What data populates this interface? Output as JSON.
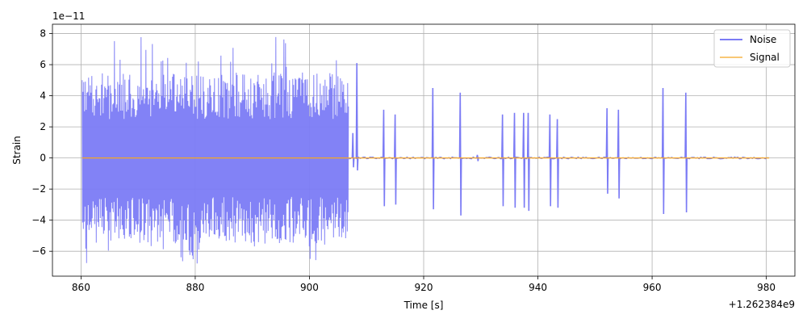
{
  "chart_data": {
    "type": "line",
    "title": "",
    "xlabel": "Time [s]",
    "ylabel": "Strain",
    "x_offset_label": "+1.262384e9",
    "y_scale_label": "1e−11",
    "xlim": [
      855,
      985
    ],
    "ylim": [
      -7.6,
      8.6
    ],
    "x_ticks": [
      860,
      880,
      900,
      920,
      940,
      960,
      980
    ],
    "x_tick_labels": [
      "860",
      "880",
      "900",
      "920",
      "940",
      "960",
      "980"
    ],
    "y_ticks": [
      -6,
      -4,
      -2,
      0,
      2,
      4,
      6,
      8
    ],
    "y_tick_labels": [
      "−6",
      "−4",
      "−2",
      "0",
      "2",
      "4",
      "6",
      "8"
    ],
    "grid": true,
    "legend": {
      "placement": "top-right"
    },
    "series": [
      {
        "name": "Noise",
        "color": "#7b7bf5",
        "dense_segment": {
          "x_range": [
            860.2,
            906.9
          ],
          "max": 7.8,
          "min": -6.9
        },
        "glitches": [
          {
            "x": 907.6,
            "max": 1.6,
            "min": -0.6
          },
          {
            "x": 908.3,
            "max": 6.1,
            "min": -0.8
          },
          {
            "x": 913.0,
            "max": 3.1,
            "min": -3.1
          },
          {
            "x": 915.0,
            "max": 2.8,
            "min": -3.0
          },
          {
            "x": 921.6,
            "max": 4.5,
            "min": -3.3
          },
          {
            "x": 926.4,
            "max": 4.2,
            "min": -3.7
          },
          {
            "x": 929.4,
            "max": 0.2,
            "min": -0.2
          },
          {
            "x": 933.8,
            "max": 2.8,
            "min": -3.1
          },
          {
            "x": 935.9,
            "max": 2.9,
            "min": -3.2
          },
          {
            "x": 937.5,
            "max": 2.9,
            "min": -3.2
          },
          {
            "x": 938.3,
            "max": 2.9,
            "min": -3.4
          },
          {
            "x": 942.1,
            "max": 2.8,
            "min": -3.1
          },
          {
            "x": 943.4,
            "max": 2.5,
            "min": -3.2
          },
          {
            "x": 952.1,
            "max": 3.2,
            "min": -2.3
          },
          {
            "x": 954.1,
            "max": 3.1,
            "min": -2.6
          },
          {
            "x": 961.9,
            "max": 4.5,
            "min": -3.6
          },
          {
            "x": 965.9,
            "max": 4.2,
            "min": -3.5
          }
        ],
        "baseline": {
          "x_range": [
            906.9,
            980.5
          ],
          "amplitude": 0.06
        }
      },
      {
        "name": "Signal",
        "color": "#f5a623",
        "x": [
          860.2,
          980.5
        ],
        "values": [
          0,
          0
        ]
      }
    ]
  }
}
